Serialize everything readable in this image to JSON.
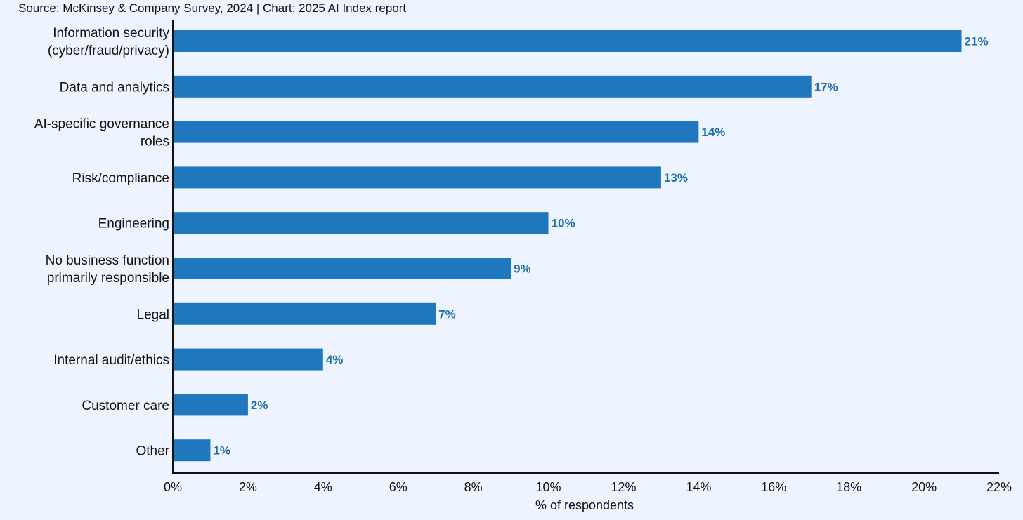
{
  "source_note": "Source: McKinsey & Company Survey, 2024 | Chart: 2025 AI Index report",
  "colors": {
    "background": "#eef4ff",
    "bar": "#1f77bd",
    "data_label": "#1f6fa8",
    "axis": "#111111"
  },
  "chart_data": {
    "type": "bar",
    "orientation": "horizontal",
    "title": "",
    "xlabel": "% of respondents",
    "ylabel": "",
    "xlim": [
      0,
      22
    ],
    "x_ticks": [
      0,
      2,
      4,
      6,
      8,
      10,
      12,
      14,
      16,
      18,
      20,
      22
    ],
    "x_tick_labels": [
      "0%",
      "2%",
      "4%",
      "6%",
      "8%",
      "10%",
      "12%",
      "14%",
      "16%",
      "18%",
      "20%",
      "22%"
    ],
    "grid": false,
    "legend": "none",
    "categories": [
      [
        "Information security",
        "(cyber/fraud/privacy)"
      ],
      [
        "Data and analytics"
      ],
      [
        "AI-specific governance",
        "roles"
      ],
      [
        "Risk/compliance"
      ],
      [
        "Engineering"
      ],
      [
        "No business function",
        "primarily responsible"
      ],
      [
        "Legal"
      ],
      [
        "Internal audit/ethics"
      ],
      [
        "Customer care"
      ],
      [
        "Other"
      ]
    ],
    "values": [
      21,
      17,
      14,
      13,
      10,
      9,
      7,
      4,
      2,
      1
    ],
    "value_labels": [
      "21%",
      "17%",
      "14%",
      "13%",
      "10%",
      "9%",
      "7%",
      "4%",
      "2%",
      "1%"
    ]
  }
}
